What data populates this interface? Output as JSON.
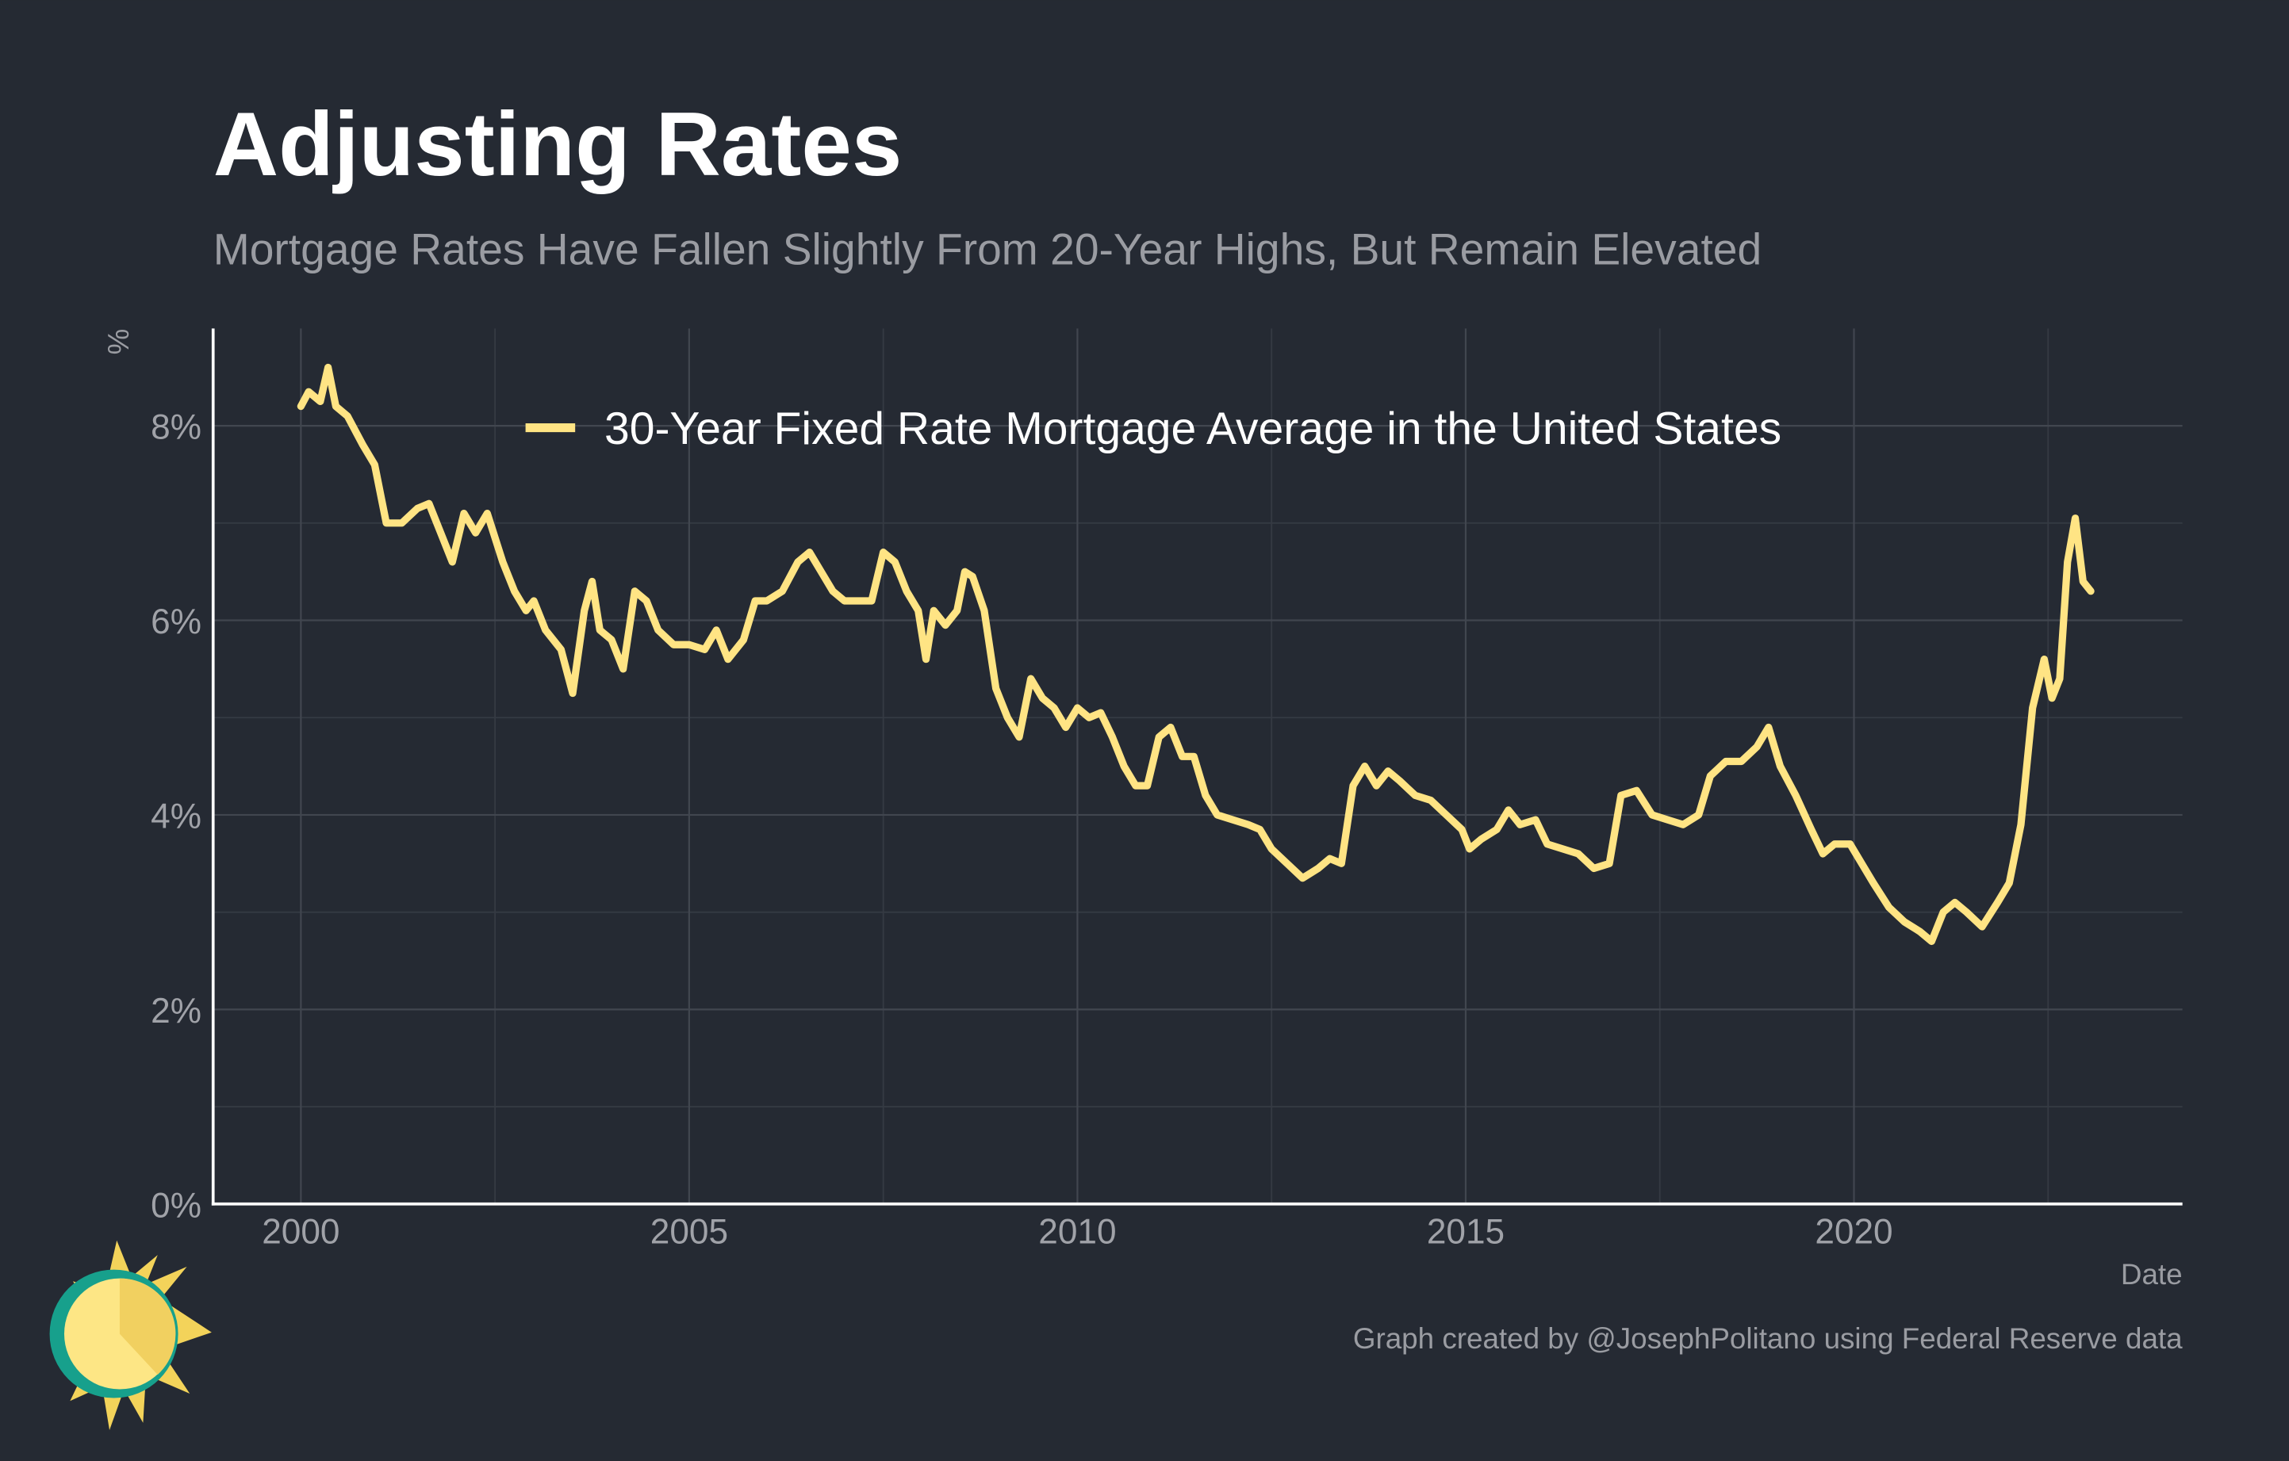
{
  "chart_data": {
    "type": "line",
    "title": "Adjusting Rates",
    "subtitle": "Mortgage Rates Have Fallen Slightly From 20-Year Highs, But Remain Elevated",
    "y_label": "%",
    "x_label": "Date",
    "caption": "Graph created by @JosephPolitano using Federal Reserve data",
    "xlim": [
      1998.87,
      2024.23
    ],
    "ylim": [
      0,
      9
    ],
    "xticks": [
      2000,
      2005,
      2010,
      2015,
      2020
    ],
    "yticks": [
      {
        "value": 0,
        "label": "0%"
      },
      {
        "value": 2,
        "label": "2%"
      },
      {
        "value": 4,
        "label": "4%"
      },
      {
        "value": 6,
        "label": "6%"
      },
      {
        "value": 8,
        "label": "8%"
      }
    ],
    "minor_xticks": [
      2002.5,
      2007.5,
      2012.5,
      2017.5,
      2022.5
    ],
    "minor_yticks": [
      1,
      3,
      5,
      7
    ],
    "grid": true,
    "legend_position": "top",
    "x": [
      2000.0,
      2000.1,
      2000.25,
      2000.35,
      2000.45,
      2000.6,
      2000.8,
      2000.95,
      2001.1,
      2001.3,
      2001.5,
      2001.65,
      2001.8,
      2001.95,
      2002.1,
      2002.25,
      2002.4,
      2002.6,
      2002.75,
      2002.9,
      2003.0,
      2003.15,
      2003.35,
      2003.5,
      2003.65,
      2003.75,
      2003.85,
      2004.0,
      2004.15,
      2004.3,
      2004.45,
      2004.6,
      2004.8,
      2005.0,
      2005.2,
      2005.35,
      2005.5,
      2005.7,
      2005.85,
      2006.0,
      2006.2,
      2006.4,
      2006.55,
      2006.7,
      2006.85,
      2007.0,
      2007.2,
      2007.35,
      2007.5,
      2007.65,
      2007.8,
      2007.95,
      2008.05,
      2008.15,
      2008.3,
      2008.45,
      2008.55,
      2008.65,
      2008.8,
      2008.95,
      2009.1,
      2009.25,
      2009.4,
      2009.55,
      2009.7,
      2009.85,
      2010.0,
      2010.15,
      2010.3,
      2010.45,
      2010.6,
      2010.75,
      2010.9,
      2011.05,
      2011.2,
      2011.35,
      2011.5,
      2011.65,
      2011.8,
      2012.0,
      2012.2,
      2012.35,
      2012.5,
      2012.7,
      2012.9,
      2013.1,
      2013.25,
      2013.4,
      2013.55,
      2013.7,
      2013.85,
      2014.0,
      2014.15,
      2014.35,
      2014.55,
      2014.75,
      2014.95,
      2015.05,
      2015.2,
      2015.4,
      2015.55,
      2015.7,
      2015.9,
      2016.05,
      2016.25,
      2016.45,
      2016.65,
      2016.85,
      2017.0,
      2017.2,
      2017.4,
      2017.6,
      2017.8,
      2018.0,
      2018.15,
      2018.35,
      2018.55,
      2018.75,
      2018.9,
      2019.05,
      2019.25,
      2019.45,
      2019.6,
      2019.75,
      2019.95,
      2020.1,
      2020.25,
      2020.45,
      2020.65,
      2020.85,
      2021.0,
      2021.15,
      2021.3,
      2021.45,
      2021.65,
      2021.85,
      2022.0,
      2022.15,
      2022.3,
      2022.45,
      2022.55,
      2022.65,
      2022.75,
      2022.85,
      2022.95,
      2023.05
    ],
    "series": [
      {
        "name": "30-Year Fixed Rate Mortgage Average in the United States",
        "color": "#ffe484",
        "values": [
          8.2,
          8.35,
          8.25,
          8.6,
          8.2,
          8.1,
          7.8,
          7.6,
          7.0,
          7.0,
          7.15,
          7.2,
          6.9,
          6.6,
          7.1,
          6.9,
          7.1,
          6.6,
          6.3,
          6.1,
          6.2,
          5.9,
          5.7,
          5.25,
          6.1,
          6.4,
          5.9,
          5.8,
          5.5,
          6.3,
          6.2,
          5.9,
          5.75,
          5.75,
          5.7,
          5.9,
          5.6,
          5.8,
          6.2,
          6.2,
          6.3,
          6.6,
          6.7,
          6.5,
          6.3,
          6.2,
          6.2,
          6.2,
          6.7,
          6.6,
          6.3,
          6.1,
          5.6,
          6.1,
          5.95,
          6.1,
          6.5,
          6.45,
          6.1,
          5.3,
          5.0,
          4.8,
          5.4,
          5.2,
          5.1,
          4.9,
          5.1,
          5.0,
          5.05,
          4.8,
          4.5,
          4.3,
          4.3,
          4.8,
          4.9,
          4.6,
          4.6,
          4.2,
          4.0,
          3.95,
          3.9,
          3.85,
          3.65,
          3.5,
          3.35,
          3.45,
          3.55,
          3.5,
          4.3,
          4.5,
          4.3,
          4.45,
          4.35,
          4.2,
          4.15,
          4.0,
          3.85,
          3.65,
          3.75,
          3.85,
          4.05,
          3.9,
          3.95,
          3.7,
          3.65,
          3.6,
          3.45,
          3.5,
          4.2,
          4.25,
          4.0,
          3.95,
          3.9,
          4.0,
          4.4,
          4.55,
          4.55,
          4.7,
          4.9,
          4.5,
          4.2,
          3.85,
          3.6,
          3.7,
          3.7,
          3.5,
          3.3,
          3.05,
          2.9,
          2.8,
          2.7,
          3.0,
          3.1,
          3.0,
          2.85,
          3.1,
          3.3,
          3.9,
          5.1,
          5.6,
          5.2,
          5.4,
          6.6,
          7.05,
          6.4,
          6.3
        ]
      }
    ]
  }
}
